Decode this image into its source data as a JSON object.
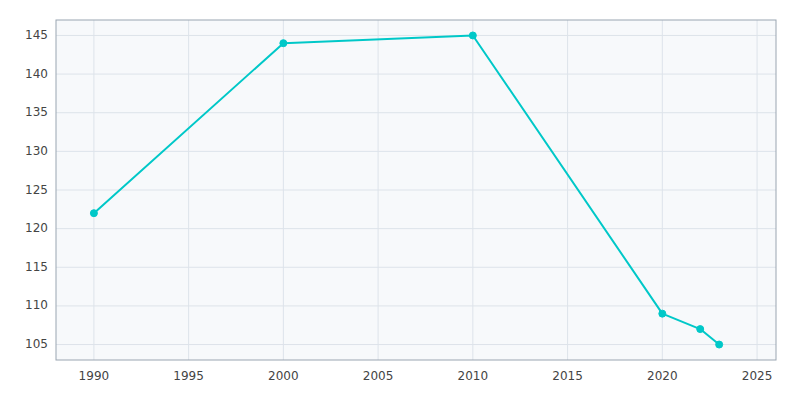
{
  "chart_data": {
    "type": "line",
    "x": [
      1990,
      2000,
      2010,
      2020,
      2022,
      2023
    ],
    "values": [
      122,
      144,
      145,
      109,
      107,
      105
    ],
    "color": "#00C8C8",
    "marker": "circle",
    "xlim": [
      1988,
      2026
    ],
    "ylim": [
      103,
      147
    ],
    "xticks": [
      1990,
      1995,
      2000,
      2005,
      2010,
      2015,
      2020,
      2025
    ],
    "yticks": [
      105,
      110,
      115,
      120,
      125,
      130,
      135,
      140,
      145
    ],
    "grid": true
  }
}
